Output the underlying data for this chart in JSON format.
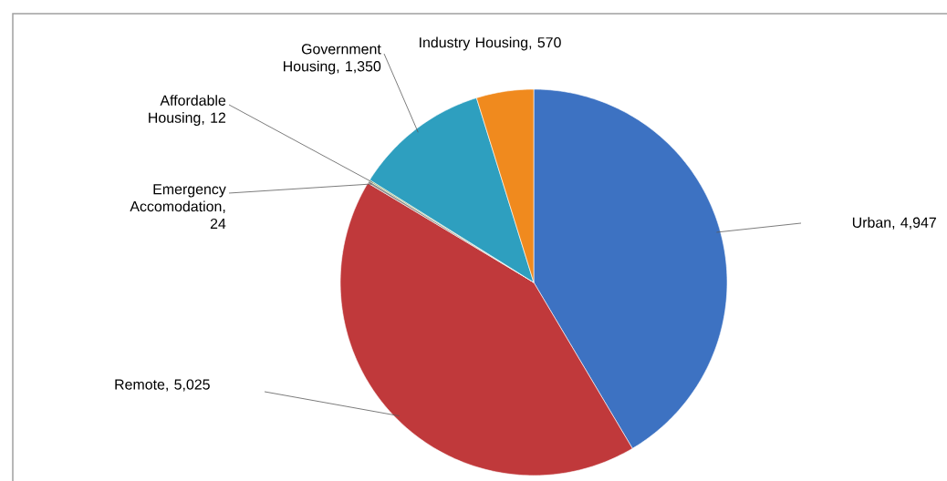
{
  "chart_data": {
    "type": "pie",
    "categories": [
      "Urban",
      "Remote",
      "Emergency Accomodation",
      "Affordable Housing",
      "Government Housing",
      "Industry Housing"
    ],
    "values": [
      4947,
      5025,
      24,
      12,
      1350,
      570
    ],
    "value_labels": [
      ",  4,947",
      ",  5,025",
      ",  24",
      ",  12",
      ",  1,350",
      ",  570"
    ],
    "colors": [
      "#3d72c2",
      "#c0393b",
      "#8c8c8c",
      "#86a83e",
      "#2e9fbf",
      "#f08a1e"
    ]
  }
}
